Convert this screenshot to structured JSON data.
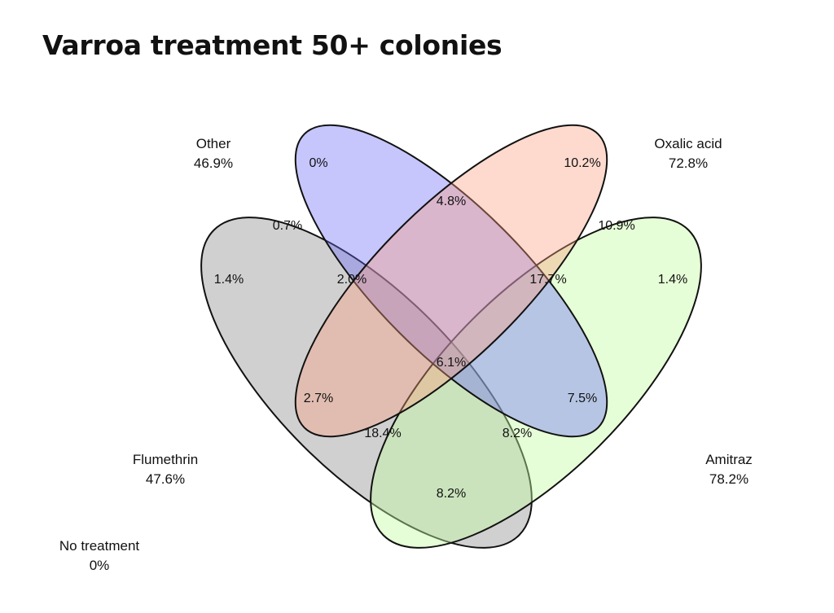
{
  "title": "Varroa treatment 50+ colonies",
  "sets": {
    "other": {
      "label": "Other",
      "percent": "46.9%",
      "color": "#6a6afb"
    },
    "oxalic": {
      "label": "Oxalic acid",
      "percent": "72.8%",
      "color": "#fc9f7d"
    },
    "flumethrin": {
      "label": "Flumethrin",
      "percent": "47.6%",
      "color": "#8f8f8f"
    },
    "amitraz": {
      "label": "Amitraz",
      "percent": "78.2%",
      "color": "#c3fca0"
    }
  },
  "no_treatment": {
    "label": "No treatment",
    "percent": "0%"
  },
  "regions": {
    "other_only": "0%",
    "oxalic_only": "10.2%",
    "other_oxalic": "4.8%",
    "other_flumethrin": "0.7%",
    "oxalic_amitraz": "10.9%",
    "flumethrin_only": "1.4%",
    "other_oxalic_flumethrin": "2.0%",
    "other_oxalic_amitraz": "17.7%",
    "amitraz_only": "1.4%",
    "all_four": "6.1%",
    "oxalic_flumethrin": "2.7%",
    "oxalic_flumethrin_amitraz": "18.4%",
    "other_flumethrin_amitraz": "8.2%",
    "other_amitraz": "7.5%",
    "flumethrin_amitraz": "8.2%"
  }
}
